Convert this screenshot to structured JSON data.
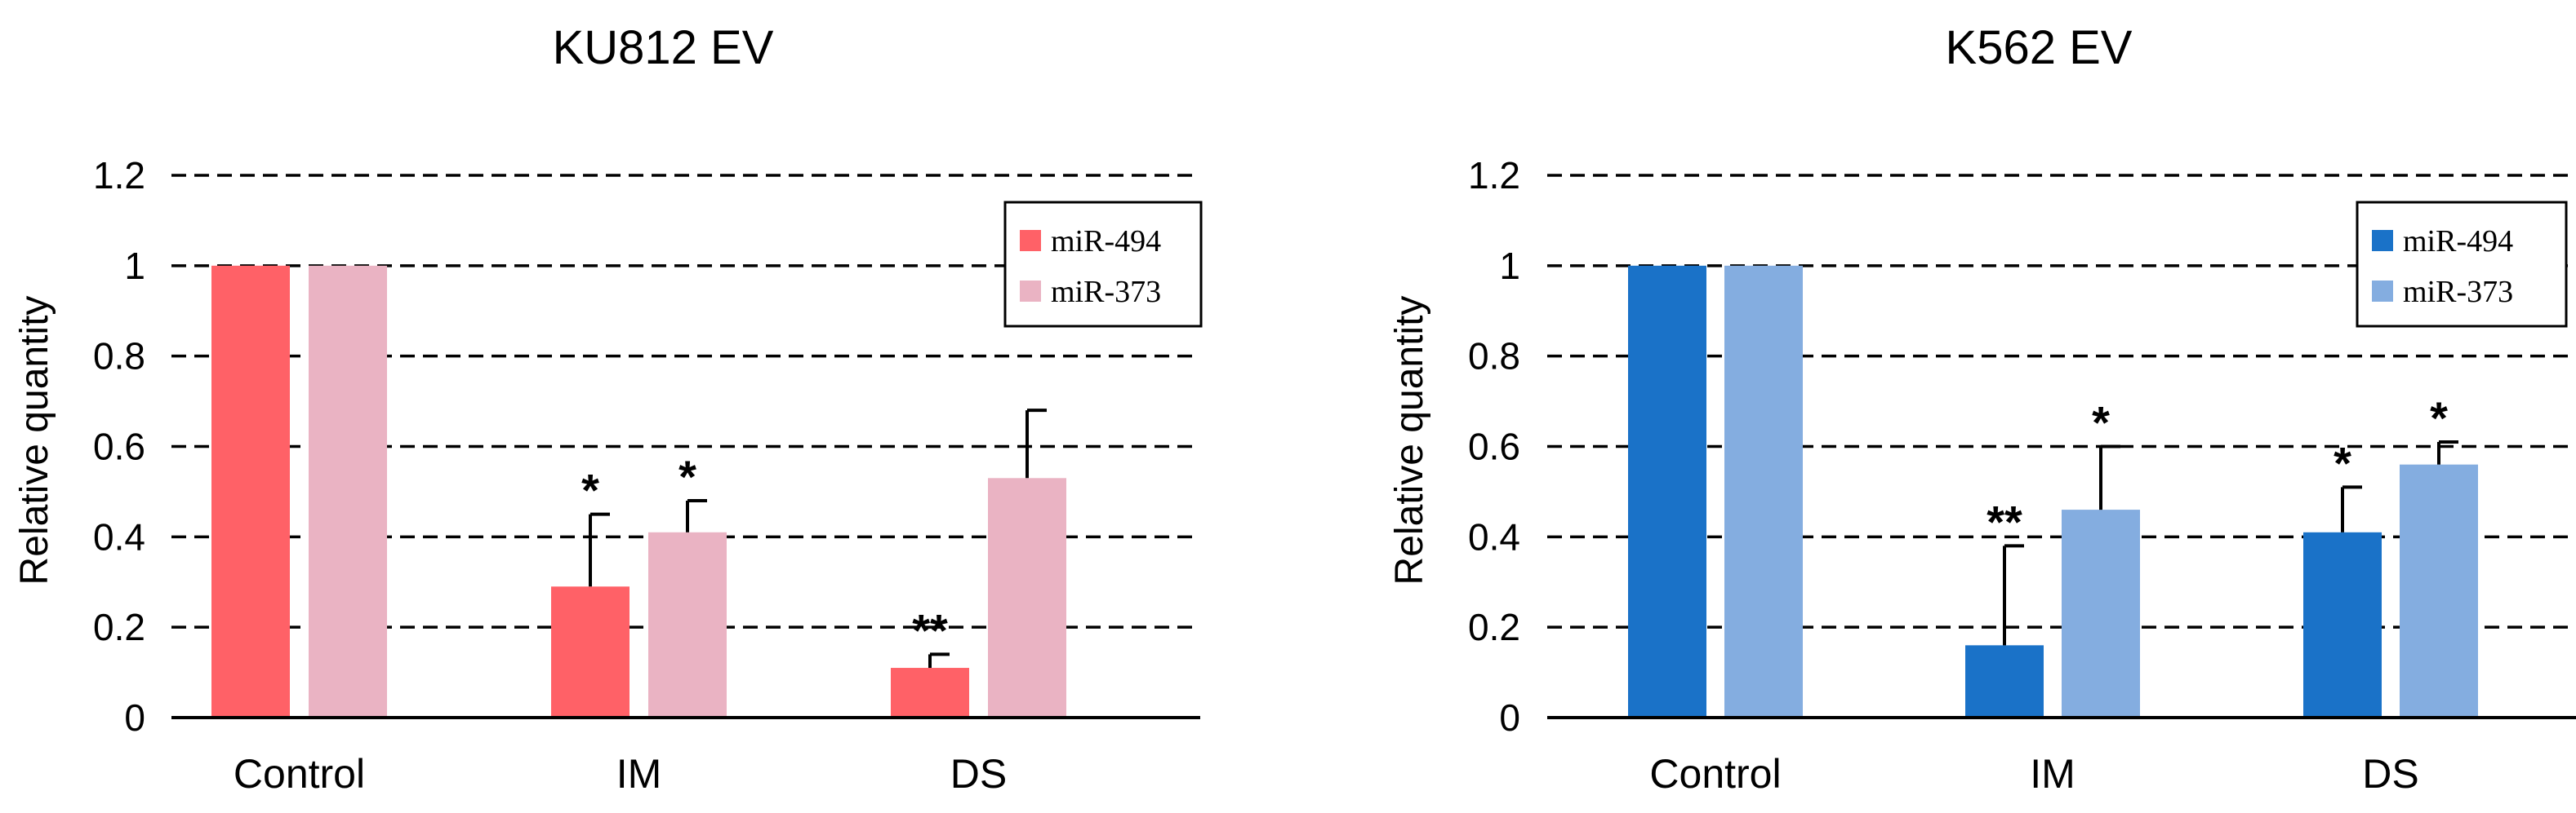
{
  "chart_data": [
    {
      "type": "bar",
      "title": "KU812 EV",
      "xlabel": "",
      "ylabel": "Relative quantity",
      "ylim": [
        0,
        1.2
      ],
      "yticks": [
        "0",
        "0.2",
        "0.4",
        "0.6",
        "0.8",
        "1",
        "1.2"
      ],
      "ytick_values": [
        0,
        0.2,
        0.4,
        0.6,
        0.8,
        1.0,
        1.2
      ],
      "grid": "dashed horizontal",
      "legend_position": "top-right",
      "categories": [
        "Control",
        "IM",
        "DS"
      ],
      "series": [
        {
          "name": "miR-494",
          "color": "#ff6167",
          "values": [
            1.0,
            0.29,
            0.11
          ],
          "errors": [
            0,
            0.16,
            0.03
          ],
          "significance": [
            "",
            "*",
            "**"
          ]
        },
        {
          "name": "miR-373",
          "color": "#eab3c3",
          "values": [
            1.0,
            0.41,
            0.53
          ],
          "errors": [
            0,
            0.07,
            0.15
          ],
          "significance": [
            "",
            "*",
            ""
          ]
        }
      ]
    },
    {
      "type": "bar",
      "title": "K562 EV",
      "xlabel": "",
      "ylabel": "Relative quantity",
      "ylim": [
        0,
        1.2
      ],
      "yticks": [
        "0",
        "0.2",
        "0.4",
        "0.6",
        "0.8",
        "1",
        "1.2"
      ],
      "ytick_values": [
        0,
        0.2,
        0.4,
        0.6,
        0.8,
        1.0,
        1.2
      ],
      "grid": "dashed horizontal",
      "legend_position": "top-right",
      "categories": [
        "Control",
        "IM",
        "DS"
      ],
      "series": [
        {
          "name": "miR-494",
          "color": "#1a72c8",
          "values": [
            1.0,
            0.16,
            0.41
          ],
          "errors": [
            0,
            0.22,
            0.1
          ],
          "significance": [
            "",
            "**",
            "*"
          ]
        },
        {
          "name": "miR-373",
          "color": "#84ade0",
          "values": [
            1.0,
            0.46,
            0.56
          ],
          "errors": [
            0,
            0.14,
            0.05
          ],
          "significance": [
            "",
            "*",
            "*"
          ]
        }
      ]
    }
  ]
}
